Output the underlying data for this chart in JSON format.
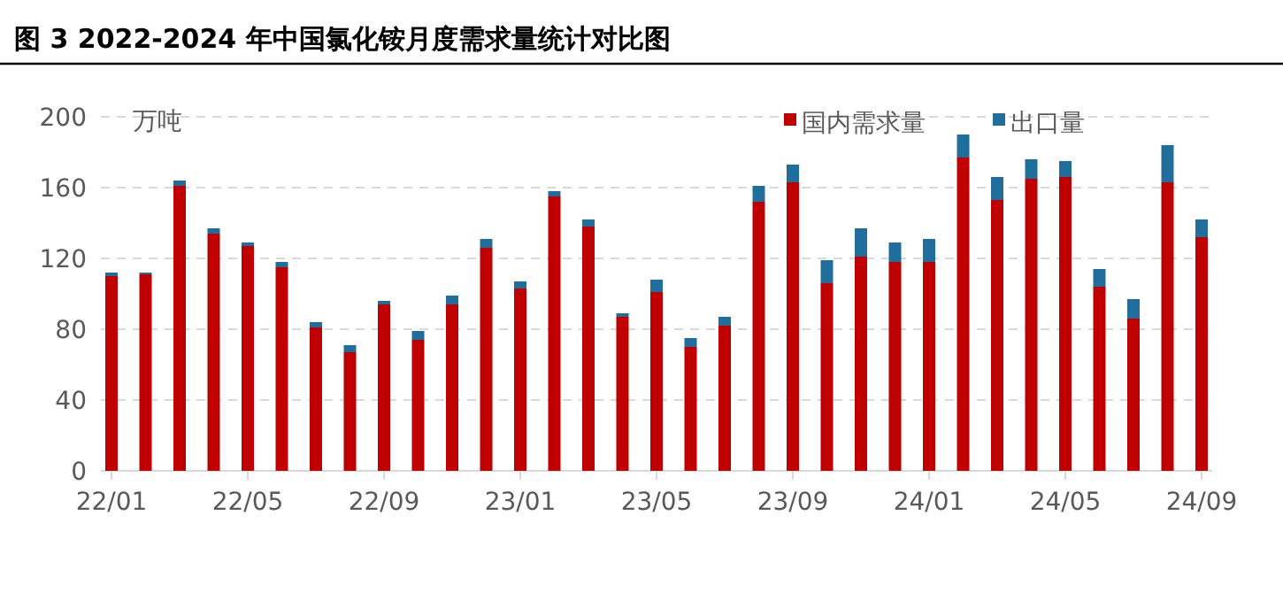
{
  "chart_data": {
    "type": "bar",
    "title": "图 3 2022-2024 年中国氯化铵月度需求量统计对比图",
    "ylabel": "万吨",
    "stacked": true,
    "grid": "y",
    "legend": "top right",
    "categories": [
      "22/01",
      null,
      null,
      null,
      "22/05",
      null,
      null,
      null,
      "22/09",
      null,
      null,
      null,
      "23/01",
      null,
      null,
      null,
      "23/05",
      null,
      null,
      null,
      "23/09",
      null,
      null,
      null,
      "24/01",
      null,
      null,
      null,
      "24/05",
      null,
      null,
      null,
      "24/09"
    ],
    "ylim": [
      0,
      200
    ],
    "yticks": [
      0,
      40,
      80,
      120,
      160,
      200
    ],
    "series": [
      {
        "name": "国内需求量",
        "color": "#c00000",
        "values": [
          110,
          111,
          161,
          134,
          127,
          115,
          81,
          67,
          94,
          74,
          94,
          126,
          103,
          155,
          138,
          87,
          101,
          70,
          82,
          152,
          163,
          106,
          121,
          118,
          118,
          177,
          153,
          165,
          166,
          104,
          86,
          163,
          132
        ]
      },
      {
        "name": "出口量",
        "color": "#1f6e9c",
        "values": [
          2,
          1,
          3,
          3,
          2,
          3,
          3,
          4,
          2,
          5,
          5,
          5,
          4,
          3,
          4,
          2,
          7,
          5,
          5,
          9,
          10,
          13,
          16,
          11,
          13,
          13,
          13,
          11,
          9,
          10,
          11,
          21,
          10
        ]
      }
    ]
  }
}
